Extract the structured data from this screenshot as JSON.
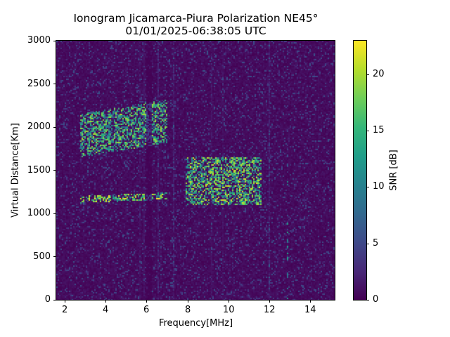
{
  "title": {
    "line1": "Ionogram Jicamarca-Piura Polarization NE45°",
    "line2": "01/01/2025-06:38:05 UTC"
  },
  "axes": {
    "xlabel": "Frequency[MHz]",
    "ylabel": "Virtual Distance[Km]",
    "xticks": [
      "2",
      "4",
      "6",
      "8",
      "10",
      "12",
      "14"
    ],
    "yticks": [
      "0",
      "500",
      "1000",
      "1500",
      "2000",
      "2500",
      "3000"
    ]
  },
  "colorbar": {
    "label": "SNR [dB]",
    "ticks": [
      "0",
      "5",
      "10",
      "15",
      "20"
    ],
    "colormap": "viridis",
    "colors": [
      "#440154",
      "#3e4989",
      "#26828e",
      "#35b779",
      "#fde725"
    ]
  },
  "chart_data": {
    "type": "heatmap",
    "title": "Ionogram Jicamarca-Piura Polarization NE45° 01/01/2025-06:38:05 UTC",
    "xlabel": "Frequency[MHz]",
    "ylabel": "Virtual Distance[Km]",
    "colorbar_label": "SNR [dB]",
    "xlim": [
      1.6,
      15.2
    ],
    "ylim": [
      0,
      3000
    ],
    "clim": [
      0,
      23
    ],
    "xticks": [
      2,
      4,
      6,
      8,
      10,
      12,
      14
    ],
    "yticks": [
      0,
      500,
      1000,
      1500,
      2000,
      2500,
      3000
    ],
    "cticks": [
      0,
      5,
      10,
      15,
      20
    ],
    "grid": false,
    "background_snr": 1,
    "features": [
      {
        "name": "1-hop F trace (low)",
        "freq_range_mhz": [
          2.8,
          7.0
        ],
        "virtual_km": [
          1120,
          1200
        ],
        "peak_snr_db": 23
      },
      {
        "name": "1-hop F spread (high freq)",
        "freq_range_mhz": [
          7.9,
          11.6
        ],
        "virtual_km": [
          1100,
          1650
        ],
        "peak_snr_db": 22
      },
      {
        "name": "2-hop echo",
        "freq_range_mhz": [
          2.8,
          7.0
        ],
        "virtual_km": [
          1650,
          2150
        ],
        "peak_snr_db": 20
      },
      {
        "name": "vertical interference line",
        "freq_mhz": 12.9,
        "virtual_km": [
          0,
          1750
        ],
        "peak_snr_db": 14
      },
      {
        "name": "quiet gap column",
        "freq_range_mhz": [
          6.0,
          6.3
        ],
        "virtual_km": [
          0,
          3000
        ],
        "peak_snr_db": 1
      }
    ]
  }
}
